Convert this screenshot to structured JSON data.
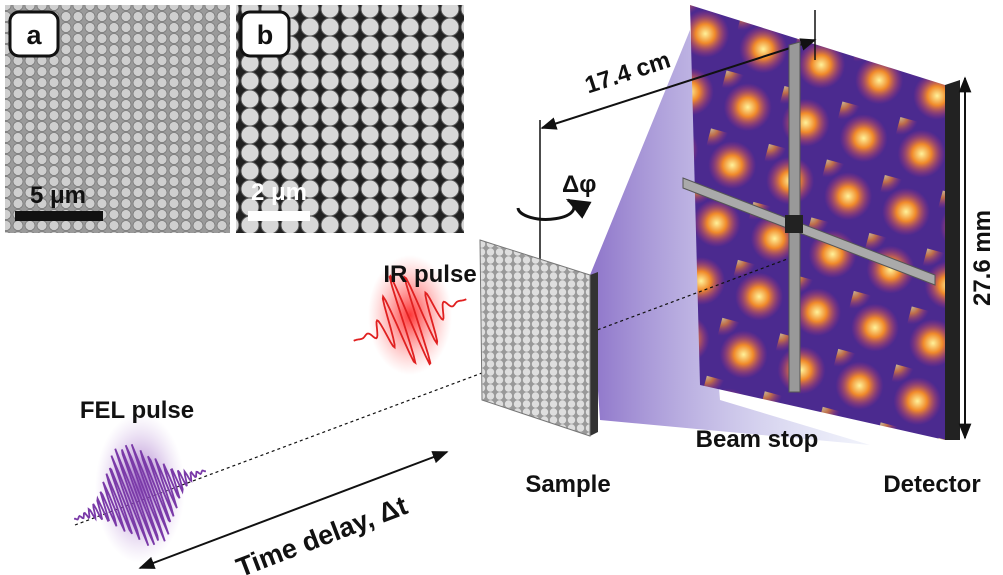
{
  "panels": [
    {
      "label": "a",
      "scale_bar": "5 μm"
    },
    {
      "label": "b",
      "scale_bar": "2 μm"
    }
  ],
  "labels": {
    "distance": "17.4 cm",
    "rotation": "Δφ",
    "detector_size": "27.6 mm",
    "ir_pulse": "IR pulse",
    "fel_pulse": "FEL pulse",
    "time_delay": "Time delay, Δt",
    "sample": "Sample",
    "beam_stop": "Beam stop",
    "detector": "Detector"
  }
}
